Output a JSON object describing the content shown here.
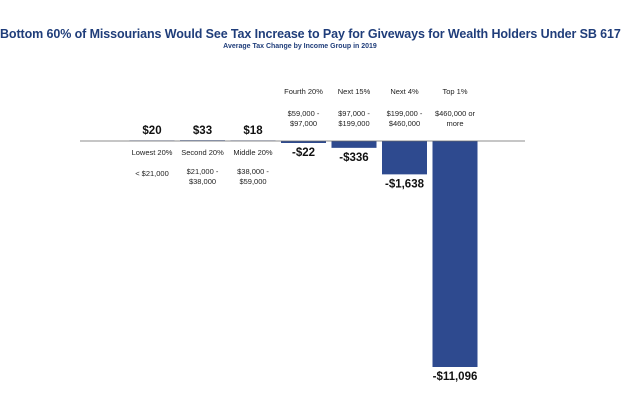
{
  "chart_data": {
    "type": "bar",
    "title": "Bottom 60% of Missourians Would See Tax Increase to Pay for Giveways for Wealth Holders Under SB 617",
    "subtitle": "Average Tax Change by Income Group in 2019",
    "categories": [
      {
        "name": "Lowest 20%",
        "range": [
          "< $21,000"
        ]
      },
      {
        "name": "Second 20%",
        "range": [
          "$21,000 -",
          "$38,000"
        ]
      },
      {
        "name": "Middle 20%",
        "range": [
          "$38,000 -",
          "$59,000"
        ]
      },
      {
        "name": "Fourth 20%",
        "range": [
          "$59,000 -",
          "$97,000"
        ]
      },
      {
        "name": "Next 15%",
        "range": [
          "$97,000 -",
          "$199,000"
        ]
      },
      {
        "name": "Next 4%",
        "range": [
          "$199,000 -",
          "$460,000"
        ]
      },
      {
        "name": "Top 1%",
        "range": [
          "$460,000 or",
          "more"
        ]
      }
    ],
    "values": [
      20,
      33,
      18,
      -22,
      -336,
      -1638,
      -11096
    ],
    "value_labels": [
      "$20",
      "$33",
      "$18",
      "-$22",
      "-$336",
      "-$1,638",
      "-$11,096"
    ],
    "ylim": [
      -11096,
      33
    ],
    "xlabel": "",
    "ylabel": "",
    "grid": false,
    "legend": "none",
    "bar_color": "#2e4a8f"
  }
}
